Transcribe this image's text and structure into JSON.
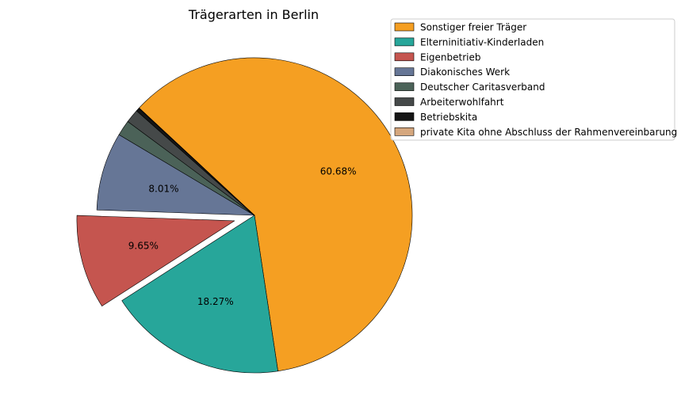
{
  "chart_data": {
    "type": "pie",
    "title": "Trägerarten in Berlin",
    "slices": [
      {
        "label": "Sonstiger freier Träger",
        "value": 60.68,
        "pct_label": "60.68%",
        "color": "#f59f22",
        "explode": false
      },
      {
        "label": "Elterninitiativ-Kinderladen",
        "value": 18.27,
        "pct_label": "18.27%",
        "color": "#27a69a",
        "explode": false
      },
      {
        "label": "Eigenbetrieb",
        "value": 9.65,
        "pct_label": "9.65%",
        "color": "#c5554f",
        "explode": true
      },
      {
        "label": "Diakonisches Werk",
        "value": 8.01,
        "pct_label": "8.01%",
        "color": "#667696",
        "explode": false
      },
      {
        "label": "Deutscher Caritasverband",
        "value": 1.6,
        "pct_label": "",
        "color": "#4b6258",
        "explode": false
      },
      {
        "label": "Arbeiterwohlfahrt",
        "value": 1.4,
        "pct_label": "",
        "color": "#454949",
        "explode": false
      },
      {
        "label": "Betriebskita",
        "value": 0.35,
        "pct_label": "",
        "color": "#151515",
        "explode": false
      },
      {
        "label": "private Kita ohne Abschluss der Rahmenvereinbarung",
        "value": 0.04,
        "pct_label": "",
        "color": "#d5a77e",
        "explode": false
      }
    ],
    "start_angle_deg": 137,
    "direction": "clockwise",
    "legend_position": "top-right"
  }
}
